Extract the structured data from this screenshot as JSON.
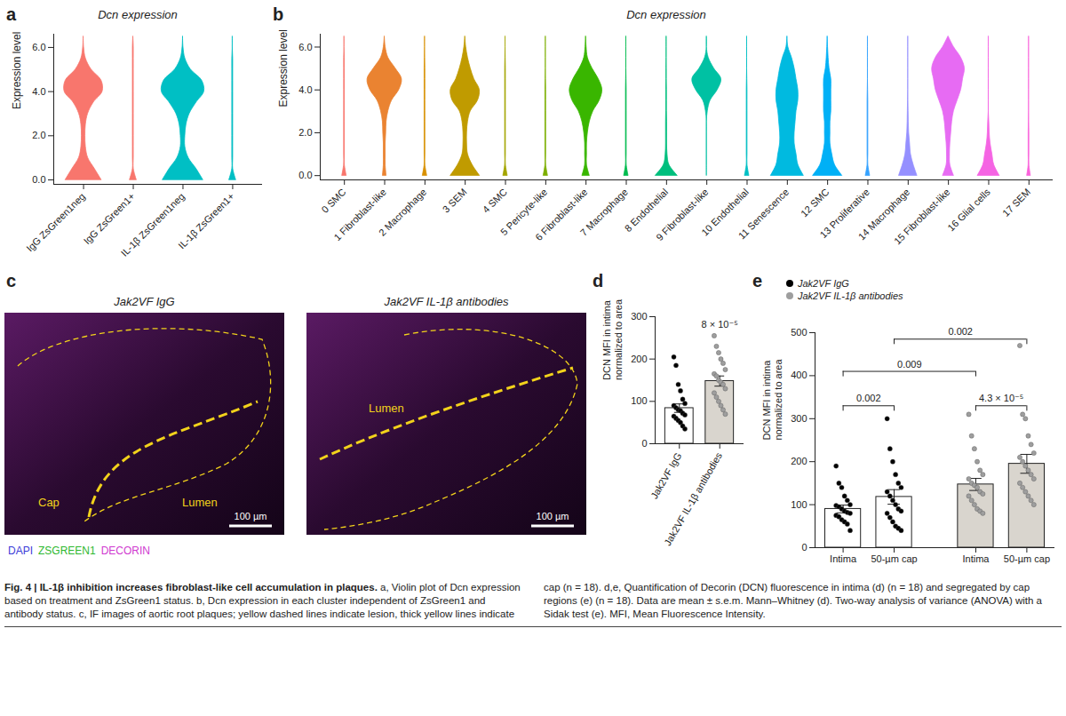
{
  "chart_data": [
    {
      "panel": "a",
      "type": "violin",
      "title": "Dcn expression",
      "y_label": "Expression level",
      "categories": [
        "IgG ZsGreen1neg",
        "IgG ZsGreen1+",
        "IL-1β ZsGreen1neg",
        "IL-1β ZsGreen1+"
      ],
      "colors": [
        "#F8766D",
        "#F8766D",
        "#00BFC4",
        "#00BFC4"
      ],
      "density_levels": [
        0,
        0.5,
        1,
        1.5,
        2,
        2.5,
        3,
        3.5,
        4,
        4.5,
        5,
        5.5,
        6,
        6.5
      ],
      "densities": [
        [
          0.8,
          0.5,
          0.2,
          0.1,
          0.08,
          0.1,
          0.2,
          0.45,
          0.85,
          0.8,
          0.35,
          0.1,
          0.02,
          0
        ],
        [
          0.15,
          0.02,
          0.02,
          0.02,
          0.02,
          0.02,
          0.02,
          0.02,
          0.02,
          0.02,
          0.02,
          0.02,
          0.02,
          0
        ],
        [
          0.9,
          0.6,
          0.25,
          0.1,
          0.1,
          0.15,
          0.3,
          0.6,
          0.95,
          0.85,
          0.35,
          0.1,
          0.02,
          0
        ],
        [
          0.15,
          0.02,
          0.02,
          0.02,
          0.02,
          0.02,
          0.02,
          0.02,
          0.02,
          0.02,
          0.02,
          0.02,
          0,
          0
        ]
      ],
      "ylim": [
        -0.2,
        6.6
      ],
      "yticks": [
        0,
        2,
        4,
        6
      ]
    },
    {
      "panel": "b",
      "type": "violin",
      "title": "Dcn expression",
      "y_label": "Expression level",
      "categories": [
        "0 SMC",
        "1 Fibroblast-like",
        "2 Macrophage",
        "3 SEM",
        "4 SMC",
        "5 Pericyte-like",
        "6 Fibroblast-like",
        "7 Macrophage",
        "8 Endothelial",
        "9 Fibroblast-like",
        "10 Endothelial",
        "11 Senescence",
        "12 SMC",
        "13 Proliferative",
        "14 Macrophage",
        "15 Fibroblast-like",
        "16 Glial cells",
        "17 SEM"
      ],
      "colors": [
        "#F8766D",
        "#EA8331",
        "#D89000",
        "#C09B00",
        "#A3A500",
        "#7CAE00",
        "#39B600",
        "#00BB4E",
        "#00BF7D",
        "#00C1A3",
        "#00BFC4",
        "#00BAE0",
        "#00B0F6",
        "#35A2FF",
        "#9590FF",
        "#E76BF3",
        "#F564E3",
        "#FA62DB"
      ],
      "density_levels": [
        0,
        0.5,
        1,
        1.5,
        2,
        2.5,
        3,
        3.5,
        4,
        4.5,
        5,
        5.5,
        6,
        6.5
      ],
      "densities": [
        [
          0.12,
          0.02,
          0.02,
          0.02,
          0.02,
          0.02,
          0.02,
          0.02,
          0.02,
          0.02,
          0.02,
          0.02,
          0,
          0
        ],
        [
          0.1,
          0.05,
          0.05,
          0.05,
          0.08,
          0.1,
          0.2,
          0.4,
          0.8,
          0.95,
          0.6,
          0.2,
          0.05,
          0
        ],
        [
          0.12,
          0.02,
          0.02,
          0.02,
          0.02,
          0.02,
          0.02,
          0.02,
          0.02,
          0.02,
          0.02,
          0.01,
          0,
          0
        ],
        [
          0.8,
          0.4,
          0.15,
          0.1,
          0.1,
          0.15,
          0.3,
          0.7,
          0.8,
          0.5,
          0.3,
          0.15,
          0.05,
          0
        ],
        [
          0.12,
          0.02,
          0.02,
          0.02,
          0.02,
          0.02,
          0.02,
          0.02,
          0.02,
          0.02,
          0.02,
          0.01,
          0,
          0
        ],
        [
          0.12,
          0.02,
          0.02,
          0.02,
          0.02,
          0.02,
          0.02,
          0.02,
          0.02,
          0.01,
          0,
          0,
          0,
          0
        ],
        [
          0.2,
          0.05,
          0.05,
          0.05,
          0.1,
          0.2,
          0.4,
          0.75,
          0.9,
          0.7,
          0.35,
          0.1,
          0.03,
          0
        ],
        [
          0.12,
          0.02,
          0.02,
          0.02,
          0.02,
          0.02,
          0.02,
          0.02,
          0.02,
          0.01,
          0,
          0,
          0,
          0
        ],
        [
          0.6,
          0.15,
          0.05,
          0.03,
          0.03,
          0.03,
          0.02,
          0.02,
          0.02,
          0.01,
          0.01,
          0,
          0,
          0
        ],
        [
          0,
          0,
          0,
          0,
          0,
          0,
          0.05,
          0.2,
          0.6,
          0.8,
          0.4,
          0.1,
          0,
          0
        ],
        [
          0.12,
          0.02,
          0.02,
          0.02,
          0.02,
          0.02,
          0.02,
          0.02,
          0.02,
          0.01,
          0,
          0,
          0,
          0
        ],
        [
          0.9,
          0.6,
          0.5,
          0.4,
          0.4,
          0.45,
          0.5,
          0.6,
          0.6,
          0.5,
          0.4,
          0.25,
          0.05,
          0
        ],
        [
          0.8,
          0.4,
          0.25,
          0.15,
          0.15,
          0.15,
          0.2,
          0.2,
          0.2,
          0.2,
          0.1,
          0.05,
          0.02,
          0
        ],
        [
          0.12,
          0.02,
          0.02,
          0.02,
          0.02,
          0.02,
          0.02,
          0.02,
          0.01,
          0,
          0,
          0,
          0,
          0
        ],
        [
          0.5,
          0.3,
          0.15,
          0.1,
          0.05,
          0.03,
          0.02,
          0.01,
          0,
          0,
          0,
          0,
          0,
          0
        ],
        [
          0.3,
          0.1,
          0.08,
          0.1,
          0.15,
          0.2,
          0.3,
          0.5,
          0.7,
          0.8,
          0.9,
          0.7,
          0.3,
          0
        ],
        [
          0.6,
          0.3,
          0.2,
          0.1,
          0.05,
          0.03,
          0,
          0,
          0,
          0,
          0,
          0,
          0,
          0
        ],
        [
          0.1,
          0.02,
          0.02,
          0.02,
          0.02,
          0.01,
          0,
          0,
          0,
          0,
          0,
          0,
          0,
          0
        ]
      ],
      "ylim": [
        -0.2,
        6.6
      ],
      "yticks": [
        0,
        2,
        4,
        6
      ]
    },
    {
      "panel": "d",
      "type": "bar",
      "y_label": "DCN MFI in intima normalized to area",
      "categories": [
        "Jak2VF IgG",
        "Jak2VF IL-1β antibodies"
      ],
      "values": [
        84,
        148
      ],
      "sem": [
        10,
        12
      ],
      "points": [
        [
          205,
          185,
          140,
          125,
          105,
          95,
          90,
          85,
          80,
          78,
          72,
          68,
          65,
          60,
          55,
          50,
          42,
          35
        ],
        [
          255,
          230,
          215,
          200,
          190,
          175,
          165,
          160,
          150,
          145,
          140,
          130,
          120,
          110,
          100,
          90,
          80,
          70
        ]
      ],
      "colors": [
        "#000000",
        "#9e9e9e"
      ],
      "annotations": [
        {
          "category": "Jak2VF IL-1β antibodies",
          "label": "8 × 10⁻⁵"
        }
      ],
      "ylim": [
        0,
        300
      ],
      "yticks": [
        0,
        100,
        200,
        300
      ]
    },
    {
      "panel": "e",
      "type": "bar",
      "y_label": "DCN MFI in intima normalized to area",
      "categories": [
        "Intima",
        "50-µm cap"
      ],
      "series": [
        {
          "name": "Jak2VF IgG",
          "color": "#000000",
          "values": [
            90,
            118
          ],
          "sem": [
            9,
            17
          ],
          "points": [
            [
              190,
              150,
              140,
              120,
              110,
              100,
              98,
              95,
              90,
              85,
              82,
              80,
              75,
              72,
              65,
              60,
              55,
              40
            ],
            [
              300,
              230,
              200,
              170,
              150,
              140,
              130,
              120,
              110,
              100,
              90,
              85,
              80,
              70,
              60,
              50,
              45,
              40
            ]
          ]
        },
        {
          "name": "Jak2VF IL-1β antibodies",
          "color": "#9e9e9e",
          "values": [
            147,
            195
          ],
          "sem": [
            14,
            22
          ],
          "points": [
            [
              310,
              260,
              230,
              200,
              180,
              170,
              160,
              150,
              145,
              140,
              130,
              125,
              120,
              110,
              100,
              90,
              85,
              80
            ],
            [
              470,
              310,
              300,
              260,
              240,
              220,
              210,
              200,
              190,
              180,
              170,
              160,
              150,
              140,
              130,
              120,
              110,
              100
            ]
          ]
        }
      ],
      "comparisons": [
        {
          "between": [
            [
              "Jak2VF IgG",
              "Intima"
            ],
            [
              "Jak2VF IgG",
              "50-µm cap"
            ]
          ],
          "label": "0.002"
        },
        {
          "between": [
            [
              "Jak2VF IL-1β antibodies",
              "Intima"
            ],
            [
              "Jak2VF IL-1β antibodies",
              "50-µm cap"
            ]
          ],
          "label": "4.3 × 10⁻⁵"
        },
        {
          "between": [
            [
              "Jak2VF IgG",
              "Intima"
            ],
            [
              "Jak2VF IL-1β antibodies",
              "Intima"
            ]
          ],
          "label": "0.009"
        },
        {
          "between": [
            [
              "Jak2VF IgG",
              "50-µm cap"
            ],
            [
              "Jak2VF IL-1β antibodies",
              "50-µm cap"
            ]
          ],
          "label": "0.002"
        }
      ],
      "legend": "top-left",
      "ylim": [
        0,
        500
      ],
      "yticks": [
        0,
        100,
        200,
        300,
        400,
        500
      ]
    }
  ],
  "image_panel": {
    "panel": "c",
    "images": [
      {
        "title": "Jak2VF IgG",
        "labels": [
          "Cap",
          "Lumen"
        ],
        "scale_bar": "100 µm"
      },
      {
        "title": "Jak2VF IL-1β antibodies",
        "labels": [
          "Lumen"
        ],
        "scale_bar": "100 µm"
      }
    ],
    "channels": [
      {
        "name": "DAPI",
        "color": "#3c3cd8"
      },
      {
        "name": "ZSGREEN1",
        "color": "#2fb82f"
      },
      {
        "name": "DECORIN",
        "color": "#d03ad0"
      }
    ]
  },
  "caption": {
    "title": "Fig. 4 | IL-1β inhibition increases fibroblast-like cell accumulation in plaques.",
    "text": "a, Violin plot of Dcn expression based on treatment and ZsGreen1 status. b, Dcn expression in each cluster independent of ZsGreen1 and antibody status. c, IF images of aortic root plaques; yellow dashed lines indicate lesion, thick yellow lines indicate cap (n = 18). d,e, Quantification of Decorin (DCN) fluorescence in intima (d) (n = 18) and segregated by cap regions (e) (n = 18). Data are mean ± s.e.m. Mann–Whitney (d). Two-way analysis of variance (ANOVA) with a Sidak test (e). MFI, Mean Fluorescence Intensity."
  }
}
